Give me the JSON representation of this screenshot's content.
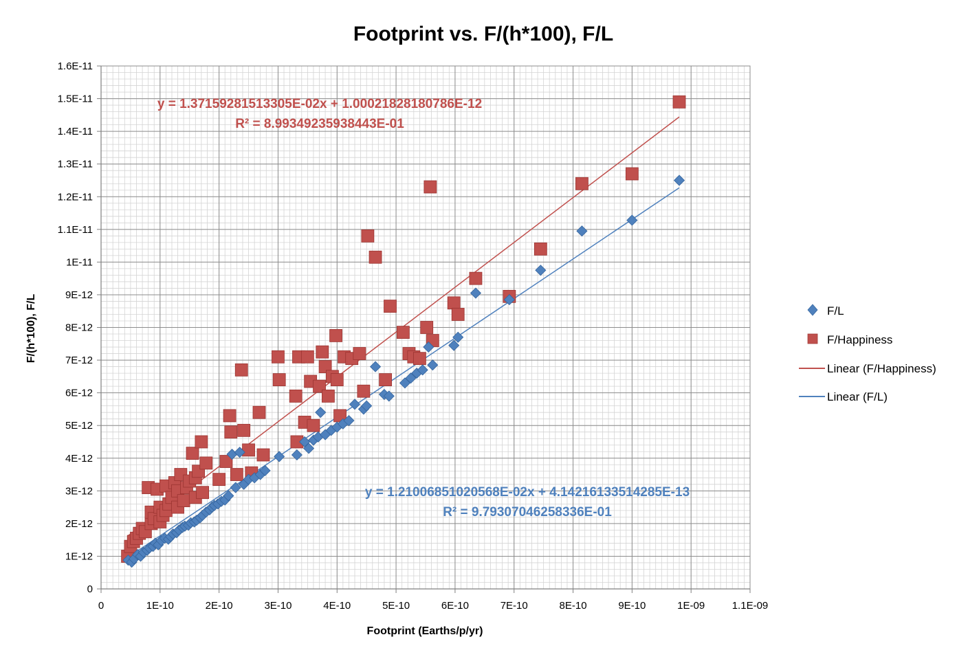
{
  "chart_data": {
    "type": "scatter",
    "title": "Footprint vs. F/(h*100), F/L",
    "xlabel": "Footprint (Earths/p/yr)",
    "ylabel": "F/(h*100), F/L",
    "xlim": [
      0,
      1.1e-09
    ],
    "ylim": [
      0,
      1.6e-11
    ],
    "x_ticks": [
      0,
      1e-10,
      2e-10,
      3e-10,
      4e-10,
      5e-10,
      6e-10,
      7e-10,
      8e-10,
      9e-10,
      1e-09,
      1.1e-09
    ],
    "x_tick_labels": [
      "0",
      "1E-10",
      "2E-10",
      "3E-10",
      "4E-10",
      "5E-10",
      "6E-10",
      "7E-10",
      "8E-10",
      "9E-10",
      "1E-09",
      "1.1E-09"
    ],
    "y_ticks": [
      0,
      1e-12,
      2e-12,
      3e-12,
      4e-12,
      5e-12,
      6e-12,
      7e-12,
      8e-12,
      9e-12,
      1e-11,
      1.1e-11,
      1.2e-11,
      1.3e-11,
      1.4e-11,
      1.5e-11,
      1.6e-11
    ],
    "y_tick_labels": [
      "0",
      "1E-12",
      "2E-12",
      "3E-12",
      "4E-12",
      "5E-12",
      "6E-12",
      "7E-12",
      "8E-12",
      "9E-12",
      "1E-11",
      "1.1E-11",
      "1.2E-11",
      "1.3E-11",
      "1.4E-11",
      "1.5E-11",
      "1.6E-11"
    ],
    "grid": true,
    "minor_grid": true,
    "legend_position": "right",
    "legend": [
      "F/L",
      "F/Happiness",
      "Linear (F/Happiness)",
      "Linear (F/L)"
    ],
    "series": [
      {
        "name": "F/L",
        "marker": "diamond",
        "color": "#4f81bd",
        "x": [
          4.6e-11,
          5.2e-11,
          5.6e-11,
          6.2e-11,
          6.7e-11,
          7.2e-11,
          7.8e-11,
          8.2e-11,
          8.8e-11,
          9.2e-11,
          9.7e-11,
          1.02e-10,
          1.08e-10,
          1.14e-10,
          1.18e-10,
          1.22e-10,
          1.28e-10,
          1.32e-10,
          1.38e-10,
          1.42e-10,
          1.48e-10,
          1.52e-10,
          1.58e-10,
          1.62e-10,
          1.68e-10,
          1.72e-10,
          1.78e-10,
          1.84e-10,
          1.88e-10,
          1.92e-10,
          1.98e-10,
          2.04e-10,
          2.1e-10,
          2.16e-10,
          2.22e-10,
          2.28e-10,
          2.35e-10,
          2.42e-10,
          2.5e-10,
          2.6e-10,
          2.7e-10,
          2.78e-10,
          3.02e-10,
          3.32e-10,
          3.45e-10,
          3.52e-10,
          3.6e-10,
          3.68e-10,
          3.72e-10,
          3.8e-10,
          3.9e-10,
          4e-10,
          4.1e-10,
          4.2e-10,
          4.3e-10,
          4.45e-10,
          4.5e-10,
          4.65e-10,
          4.8e-10,
          4.88e-10,
          5.15e-10,
          5.25e-10,
          5.35e-10,
          5.45e-10,
          5.55e-10,
          5.62e-10,
          5.98e-10,
          6.05e-10,
          6.35e-10,
          6.92e-10,
          7.45e-10,
          8.15e-10,
          9e-10,
          9.8e-10
        ],
        "y": [
          8.8e-13,
          8.2e-13,
          9.2e-13,
          1.05e-12,
          1e-12,
          1.12e-12,
          1.18e-12,
          1.25e-12,
          1.3e-12,
          1.4e-12,
          1.35e-12,
          1.48e-12,
          1.55e-12,
          1.52e-12,
          1.6e-12,
          1.68e-12,
          1.72e-12,
          1.8e-12,
          1.88e-12,
          1.92e-12,
          1.95e-12,
          2.02e-12,
          2.05e-12,
          2.1e-12,
          2.18e-12,
          2.25e-12,
          2.35e-12,
          2.42e-12,
          2.5e-12,
          2.55e-12,
          2.6e-12,
          2.68e-12,
          2.72e-12,
          2.85e-12,
          4.12e-12,
          3.1e-12,
          4.18e-12,
          3.2e-12,
          3.35e-12,
          3.4e-12,
          3.5e-12,
          3.62e-12,
          4.05e-12,
          4.1e-12,
          4.5e-12,
          4.3e-12,
          4.55e-12,
          4.65e-12,
          5.4e-12,
          4.72e-12,
          4.85e-12,
          4.95e-12,
          5.05e-12,
          5.15e-12,
          5.65e-12,
          5.5e-12,
          5.6e-12,
          6.8e-12,
          5.95e-12,
          5.9e-12,
          6.3e-12,
          6.45e-12,
          6.6e-12,
          6.7e-12,
          7.4e-12,
          6.85e-12,
          7.45e-12,
          7.7e-12,
          9.05e-12,
          8.85e-12,
          9.75e-12,
          1.095e-11,
          1.128e-11,
          1.25e-11
        ]
      },
      {
        "name": "F/Happiness",
        "marker": "square",
        "color": "#c0504d",
        "x": [
          4.5e-11,
          5e-11,
          5.5e-11,
          6e-11,
          6.5e-11,
          7e-11,
          7.5e-11,
          8e-11,
          8.5e-11,
          8.5e-11,
          9e-11,
          9.5e-11,
          1e-10,
          1e-10,
          1.05e-10,
          1.1e-10,
          1.1e-10,
          1.15e-10,
          1.2e-10,
          1.25e-10,
          1.3e-10,
          1.3e-10,
          1.35e-10,
          1.4e-10,
          1.45e-10,
          1.5e-10,
          1.55e-10,
          1.6e-10,
          1.6e-10,
          1.65e-10,
          1.7e-10,
          1.72e-10,
          1.78e-10,
          2e-10,
          2.12e-10,
          2.18e-10,
          2.2e-10,
          2.3e-10,
          2.38e-10,
          2.42e-10,
          2.5e-10,
          2.55e-10,
          2.68e-10,
          2.75e-10,
          3e-10,
          3.02e-10,
          3.3e-10,
          3.32e-10,
          3.35e-10,
          3.45e-10,
          3.5e-10,
          3.55e-10,
          3.6e-10,
          3.7e-10,
          3.75e-10,
          3.8e-10,
          3.85e-10,
          3.92e-10,
          3.98e-10,
          4e-10,
          4.05e-10,
          4.12e-10,
          4.25e-10,
          4.38e-10,
          4.45e-10,
          4.52e-10,
          4.65e-10,
          4.82e-10,
          4.9e-10,
          5.12e-10,
          5.22e-10,
          5.3e-10,
          5.4e-10,
          5.52e-10,
          5.58e-10,
          5.62e-10,
          5.98e-10,
          6.05e-10,
          6.35e-10,
          6.92e-10,
          7.45e-10,
          8.15e-10,
          9e-10,
          9.8e-10
        ],
        "y": [
          1e-12,
          1.3e-12,
          1.45e-12,
          1.55e-12,
          1.7e-12,
          1.85e-12,
          1.75e-12,
          3.1e-12,
          2e-12,
          2.35e-12,
          2.15e-12,
          3.05e-12,
          2.05e-12,
          2.5e-12,
          2.25e-12,
          2.4e-12,
          3.15e-12,
          2.6e-12,
          2.8e-12,
          3.25e-12,
          2.5e-12,
          3e-12,
          3.5e-12,
          2.7e-12,
          3.1e-12,
          3.3e-12,
          4.15e-12,
          2.8e-12,
          3.4e-12,
          3.6e-12,
          4.5e-12,
          2.95e-12,
          3.85e-12,
          3.35e-12,
          3.9e-12,
          5.3e-12,
          4.8e-12,
          3.5e-12,
          6.7e-12,
          4.85e-12,
          4.25e-12,
          3.55e-12,
          5.4e-12,
          4.1e-12,
          7.1e-12,
          6.4e-12,
          5.9e-12,
          4.5e-12,
          7.1e-12,
          5.1e-12,
          7.1e-12,
          6.35e-12,
          5e-12,
          6.2e-12,
          7.25e-12,
          6.8e-12,
          5.9e-12,
          6.5e-12,
          7.75e-12,
          6.4e-12,
          5.3e-12,
          7.1e-12,
          7.05e-12,
          7.2e-12,
          6.05e-12,
          1.08e-11,
          1.015e-11,
          6.4e-12,
          8.65e-12,
          7.85e-12,
          7.2e-12,
          7.1e-12,
          7.05e-12,
          8e-12,
          1.23e-11,
          7.6e-12,
          8.75e-12,
          8.4e-12,
          9.5e-12,
          8.95e-12,
          1.04e-11,
          1.24e-11,
          1.27e-11,
          1.49e-11
        ]
      }
    ],
    "trendlines": [
      {
        "name": "Linear (F/Happiness)",
        "color": "#c0504d",
        "slope": 0.0137159281513305,
        "intercept": 1.00021828180786e-12,
        "x_range": [
          4.5e-11,
          9.8e-10
        ],
        "equation_label": "y = 1.37159281513305E-02x + 1.00021828180786E-12",
        "r2_label": "R² = 8.99349235938443E-01"
      },
      {
        "name": "Linear (F/L)",
        "color": "#4f81bd",
        "slope": 0.0121006851020568,
        "intercept": 4.14216133514285e-13,
        "x_range": [
          4.5e-11,
          9.8e-10
        ],
        "equation_label": "y = 1.21006851020568E-02x + 4.14216133514285E-13",
        "r2_label": "R² = 9.79307046258336E-01"
      }
    ]
  }
}
